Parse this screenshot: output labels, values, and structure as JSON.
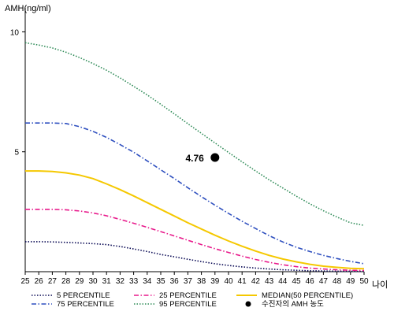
{
  "chart_data": {
    "type": "line",
    "title": "",
    "ylabel": "AMH(ng/ml)",
    "xlabel": "나이",
    "xlim": [
      25,
      50
    ],
    "ylim": [
      0,
      11
    ],
    "x_ticks": [
      25,
      26,
      27,
      28,
      29,
      30,
      31,
      32,
      33,
      34,
      35,
      36,
      37,
      38,
      39,
      40,
      41,
      42,
      43,
      44,
      45,
      46,
      47,
      48,
      49,
      50
    ],
    "y_ticks": [
      5,
      10
    ],
    "grid": false,
    "legend_position": "bottom",
    "series": [
      {
        "name": "5 PERCENTILE",
        "color": "#0a0a55",
        "dash": "dot",
        "x": [
          25,
          26,
          27,
          28,
          29,
          30,
          31,
          32,
          33,
          34,
          35,
          36,
          37,
          38,
          39,
          40,
          41,
          42,
          43,
          44,
          45,
          46,
          47,
          48,
          49,
          50
        ],
        "y": [
          1.25,
          1.25,
          1.24,
          1.22,
          1.2,
          1.17,
          1.13,
          1.05,
          0.95,
          0.84,
          0.72,
          0.62,
          0.52,
          0.42,
          0.33,
          0.26,
          0.2,
          0.15,
          0.11,
          0.08,
          0.06,
          0.04,
          0.03,
          0.02,
          0.02,
          0.01
        ]
      },
      {
        "name": "25 PERCENTILE",
        "color": "#e8198b",
        "dash": "dashdot",
        "x": [
          25,
          26,
          27,
          28,
          29,
          30,
          31,
          32,
          33,
          34,
          35,
          36,
          37,
          38,
          39,
          40,
          41,
          42,
          43,
          44,
          45,
          46,
          47,
          48,
          49,
          50
        ],
        "y": [
          2.6,
          2.6,
          2.6,
          2.58,
          2.53,
          2.45,
          2.33,
          2.18,
          2.02,
          1.85,
          1.67,
          1.49,
          1.31,
          1.13,
          0.96,
          0.8,
          0.65,
          0.51,
          0.39,
          0.29,
          0.21,
          0.15,
          0.11,
          0.08,
          0.06,
          0.05
        ]
      },
      {
        "name": "MEDIAN(50 PERCENTILE)",
        "color": "#f5c800",
        "dash": "solid",
        "x": [
          25,
          26,
          27,
          28,
          29,
          30,
          31,
          32,
          33,
          34,
          35,
          36,
          37,
          38,
          39,
          40,
          41,
          42,
          43,
          44,
          45,
          46,
          47,
          48,
          49,
          50
        ],
        "y": [
          4.2,
          4.2,
          4.18,
          4.12,
          4.03,
          3.88,
          3.66,
          3.42,
          3.16,
          2.88,
          2.6,
          2.32,
          2.04,
          1.78,
          1.52,
          1.28,
          1.06,
          0.86,
          0.68,
          0.53,
          0.41,
          0.31,
          0.23,
          0.18,
          0.14,
          0.12
        ]
      },
      {
        "name": "75 PERCENTILE",
        "color": "#2e4fbf",
        "dash": "dashdot",
        "x": [
          25,
          26,
          27,
          28,
          29,
          30,
          31,
          32,
          33,
          34,
          35,
          36,
          37,
          38,
          39,
          40,
          41,
          42,
          43,
          44,
          45,
          46,
          47,
          48,
          49,
          50
        ],
        "y": [
          6.2,
          6.2,
          6.2,
          6.18,
          6.05,
          5.85,
          5.6,
          5.3,
          4.98,
          4.62,
          4.25,
          3.88,
          3.5,
          3.13,
          2.77,
          2.43,
          2.1,
          1.8,
          1.5,
          1.24,
          1.02,
          0.84,
          0.68,
          0.55,
          0.43,
          0.33
        ]
      },
      {
        "name": "95 PERCENTILE",
        "color": "#2e8b57",
        "dash": "dot",
        "x": [
          25,
          26,
          27,
          28,
          29,
          30,
          31,
          32,
          33,
          34,
          35,
          36,
          37,
          38,
          39,
          40,
          41,
          42,
          43,
          44,
          45,
          46,
          47,
          48,
          49,
          50
        ],
        "y": [
          9.55,
          9.45,
          9.33,
          9.15,
          8.93,
          8.68,
          8.4,
          8.08,
          7.73,
          7.37,
          6.98,
          6.58,
          6.17,
          5.77,
          5.37,
          4.97,
          4.58,
          4.2,
          3.83,
          3.49,
          3.15,
          2.83,
          2.54,
          2.28,
          2.04,
          1.93
        ]
      }
    ],
    "point": {
      "name": "수진자의 AMH 농도",
      "x": 39,
      "y": 4.76,
      "label": "4.76",
      "color": "#000000"
    },
    "legend_order": [
      "5 PERCENTILE",
      "25 PERCENTILE",
      "MEDIAN(50 PERCENTILE)",
      "75 PERCENTILE",
      "95 PERCENTILE",
      "수진자의 AMH 농도"
    ]
  }
}
